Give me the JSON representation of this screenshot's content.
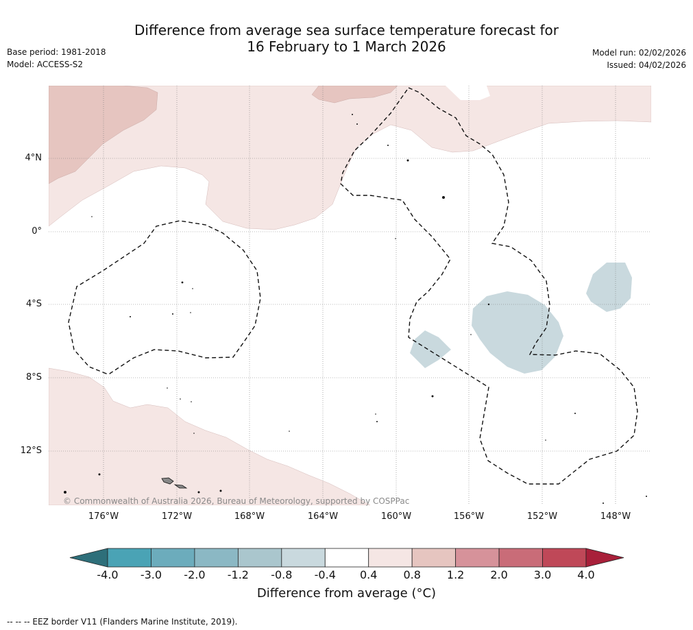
{
  "title": {
    "line1": "Difference from average sea surface temperature forecast for",
    "line2": "16 February to 1 March 2026"
  },
  "meta": {
    "base_period": "Base period: 1981-2018",
    "model": "Model: ACCESS-S2",
    "model_run": "Model run: 02/02/2026",
    "issued": "Issued: 04/02/2026"
  },
  "axes": {
    "lat_labels": [
      "4°N",
      "0°",
      "4°S",
      "8°S",
      "12°S"
    ],
    "lon_labels": [
      "176°W",
      "172°W",
      "168°W",
      "164°W",
      "160°W",
      "156°W",
      "152°W",
      "148°W"
    ]
  },
  "copyright": "© Commonwealth of Australia 2026, Bureau of Meteorology, supported by COSPPac",
  "colorbar": {
    "title": "Difference from average (°C)",
    "ticks": [
      "-4.0",
      "-3.0",
      "-2.0",
      "-1.2",
      "-0.8",
      "-0.4",
      "0.4",
      "0.8",
      "1.2",
      "2.0",
      "3.0",
      "4.0"
    ],
    "colors": [
      "#2e6f7a",
      "#4aa3b5",
      "#6cacbc",
      "#8bb8c4",
      "#aac6cd",
      "#c9d9de",
      "#ffffff",
      "#f5e6e4",
      "#e6c5c0",
      "#d6929a",
      "#c96c78",
      "#bf4858",
      "#a8203a"
    ]
  },
  "footer": "--  --  -- EEZ border V11 (Flanders Marine Institute, 2019)."
}
